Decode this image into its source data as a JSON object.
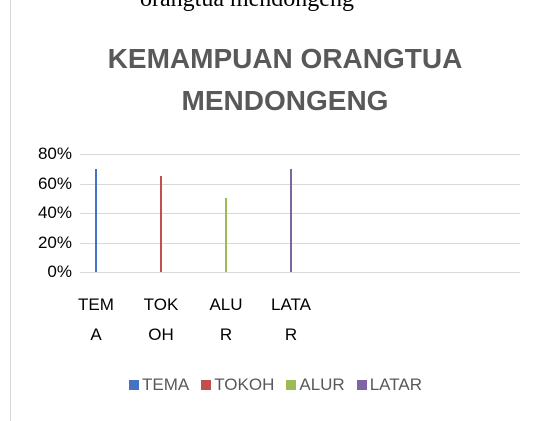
{
  "caption": "orangtua mendongeng",
  "chart_data": {
    "type": "bar",
    "title": "KEMAMPUAN ORANGTUA MENDONGENG",
    "categories": [
      "TEMA",
      "TOKOH",
      "ALUR",
      "LATAR"
    ],
    "series": [
      {
        "name": "TEMA",
        "color": "#4472c4",
        "values": [
          70,
          null,
          null,
          null
        ]
      },
      {
        "name": "TOKOH",
        "color": "#c0504d",
        "values": [
          null,
          65,
          null,
          null
        ]
      },
      {
        "name": "ALUR",
        "color": "#9bbb59",
        "values": [
          null,
          null,
          50,
          null
        ]
      },
      {
        "name": "LATAR",
        "color": "#8064a2",
        "values": [
          null,
          null,
          null,
          70
        ]
      }
    ],
    "ylim": [
      0,
      80
    ],
    "yticks": [
      {
        "value": 0,
        "label": "0%"
      },
      {
        "value": 20,
        "label": "20%"
      },
      {
        "value": 40,
        "label": "40%"
      },
      {
        "value": 60,
        "label": "60%"
      },
      {
        "value": 80,
        "label": "80%"
      }
    ],
    "grid": true,
    "legend": "bottom"
  }
}
